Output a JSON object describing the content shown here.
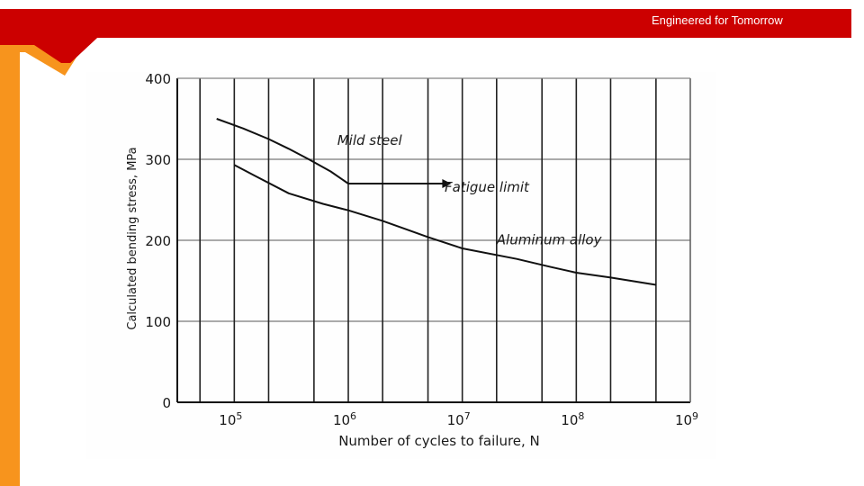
{
  "header": {
    "tagline": "Engineered for Tomorrow",
    "accent_color": "#cc0000",
    "side_color": "#f7941d"
  },
  "chart_data": {
    "type": "line",
    "x_scale": "log",
    "xlabel": "Number of cycles to failure, N",
    "ylabel": "Calculated bending stress, MPa",
    "xlim": [
      31623,
      1000000000
    ],
    "ylim": [
      0,
      400
    ],
    "xticks": [
      {
        "value": 100000,
        "base": "10",
        "exp": "5"
      },
      {
        "value": 1000000,
        "base": "10",
        "exp": "6"
      },
      {
        "value": 10000000,
        "base": "10",
        "exp": "7"
      },
      {
        "value": 100000000,
        "base": "10",
        "exp": "8"
      },
      {
        "value": 1000000000,
        "base": "10",
        "exp": "9"
      }
    ],
    "yticks": [
      0,
      100,
      200,
      300,
      400
    ],
    "grid": true,
    "series": [
      {
        "name": "Mild steel",
        "x": [
          70000,
          120000,
          200000,
          300000,
          450000,
          700000,
          1000000,
          2000000,
          5000000
        ],
        "y": [
          350,
          338,
          325,
          313,
          300,
          285,
          270,
          270,
          270
        ]
      },
      {
        "name": "Aluminum alloy",
        "x": [
          100000,
          150000,
          300000,
          600000,
          1000000,
          2000000,
          5000000,
          10000000,
          30000000,
          60000000,
          100000000,
          200000000,
          500000000
        ],
        "y": [
          293,
          280,
          258,
          245,
          237,
          224,
          204,
          190,
          177,
          167,
          160,
          154,
          145
        ]
      }
    ],
    "annotations": [
      {
        "text": "Mild steel",
        "x": 800000,
        "y": 318
      },
      {
        "text": "Fatigue limit",
        "x": 7000000,
        "y": 260
      },
      {
        "text": "Aluminum alloy",
        "x": 20000000,
        "y": 195
      }
    ],
    "fatigue_arrow": {
      "x_start": 1000000,
      "x_end": 8000000,
      "y": 270
    }
  }
}
